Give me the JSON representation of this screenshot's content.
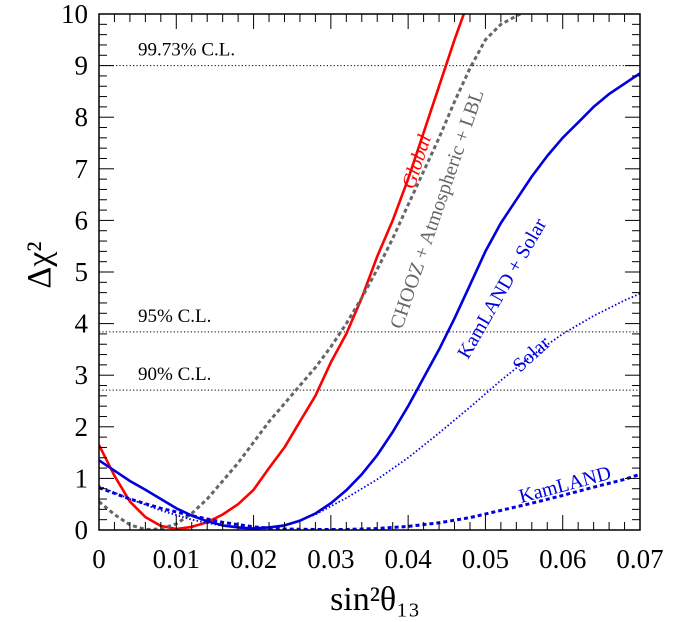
{
  "chart_data": {
    "type": "line",
    "title": "",
    "xlabel": "sin²θ₁₃",
    "ylabel": "Δχ²",
    "xlim": [
      0,
      0.07
    ],
    "ylim": [
      0,
      10
    ],
    "x_ticks": [
      "0",
      "0.01",
      "0.02",
      "0.03",
      "0.04",
      "0.05",
      "0.06",
      "0.07"
    ],
    "y_ticks": [
      "0",
      "1",
      "2",
      "3",
      "4",
      "5",
      "6",
      "7",
      "8",
      "9",
      "10"
    ],
    "grid": false,
    "reference_lines": [
      {
        "label": "99.73%  C.L.",
        "y": 9.0
      },
      {
        "label": "95% C.L.",
        "y": 3.84
      },
      {
        "label": "90% C.L.",
        "y": 2.71
      }
    ],
    "series": [
      {
        "name": "Global",
        "color": "#ff0000",
        "style": "solid",
        "points": [
          [
            0,
            1.65
          ],
          [
            0.002,
            1.05
          ],
          [
            0.004,
            0.55
          ],
          [
            0.006,
            0.25
          ],
          [
            0.008,
            0.08
          ],
          [
            0.01,
            0.02
          ],
          [
            0.012,
            0.06
          ],
          [
            0.014,
            0.15
          ],
          [
            0.016,
            0.3
          ],
          [
            0.018,
            0.5
          ],
          [
            0.02,
            0.78
          ],
          [
            0.022,
            1.2
          ],
          [
            0.024,
            1.6
          ],
          [
            0.026,
            2.1
          ],
          [
            0.028,
            2.6
          ],
          [
            0.03,
            3.25
          ],
          [
            0.032,
            3.8
          ],
          [
            0.034,
            4.5
          ],
          [
            0.036,
            5.3
          ],
          [
            0.038,
            6.0
          ],
          [
            0.04,
            6.8
          ],
          [
            0.042,
            7.7
          ],
          [
            0.044,
            8.6
          ],
          [
            0.046,
            9.5
          ],
          [
            0.0472,
            10.0
          ]
        ]
      },
      {
        "name": "CHOOZ + Atmospheric + LBL",
        "color": "#666666",
        "style": "dashed",
        "points": [
          [
            0,
            0.55
          ],
          [
            0.002,
            0.3
          ],
          [
            0.004,
            0.1
          ],
          [
            0.006,
            0.01
          ],
          [
            0.008,
            0.02
          ],
          [
            0.01,
            0.12
          ],
          [
            0.012,
            0.32
          ],
          [
            0.014,
            0.6
          ],
          [
            0.016,
            0.95
          ],
          [
            0.018,
            1.3
          ],
          [
            0.02,
            1.7
          ],
          [
            0.022,
            2.1
          ],
          [
            0.024,
            2.45
          ],
          [
            0.026,
            2.8
          ],
          [
            0.028,
            3.15
          ],
          [
            0.03,
            3.55
          ],
          [
            0.032,
            4.0
          ],
          [
            0.034,
            4.5
          ],
          [
            0.036,
            5.05
          ],
          [
            0.038,
            5.65
          ],
          [
            0.04,
            6.3
          ],
          [
            0.042,
            6.95
          ],
          [
            0.044,
            7.6
          ],
          [
            0.046,
            8.3
          ],
          [
            0.048,
            8.95
          ],
          [
            0.05,
            9.5
          ],
          [
            0.052,
            9.8
          ],
          [
            0.0545,
            10.0
          ]
        ]
      },
      {
        "name": "KamLAND + Solar",
        "color": "#0000dd",
        "style": "solid",
        "points": [
          [
            0,
            1.35
          ],
          [
            0.002,
            1.15
          ],
          [
            0.004,
            0.95
          ],
          [
            0.006,
            0.78
          ],
          [
            0.008,
            0.6
          ],
          [
            0.01,
            0.42
          ],
          [
            0.012,
            0.28
          ],
          [
            0.014,
            0.17
          ],
          [
            0.016,
            0.09
          ],
          [
            0.018,
            0.05
          ],
          [
            0.02,
            0.03
          ],
          [
            0.022,
            0.05
          ],
          [
            0.024,
            0.09
          ],
          [
            0.026,
            0.18
          ],
          [
            0.028,
            0.32
          ],
          [
            0.03,
            0.52
          ],
          [
            0.032,
            0.77
          ],
          [
            0.034,
            1.08
          ],
          [
            0.036,
            1.45
          ],
          [
            0.038,
            1.9
          ],
          [
            0.04,
            2.4
          ],
          [
            0.042,
            2.95
          ],
          [
            0.044,
            3.5
          ],
          [
            0.046,
            4.1
          ],
          [
            0.048,
            4.75
          ],
          [
            0.05,
            5.4
          ],
          [
            0.052,
            5.95
          ],
          [
            0.054,
            6.4
          ],
          [
            0.056,
            6.85
          ],
          [
            0.058,
            7.25
          ],
          [
            0.06,
            7.6
          ],
          [
            0.062,
            7.9
          ],
          [
            0.064,
            8.2
          ],
          [
            0.066,
            8.45
          ],
          [
            0.068,
            8.65
          ],
          [
            0.07,
            8.85
          ]
        ]
      },
      {
        "name": "Solar",
        "color": "#0000dd",
        "style": "dotted",
        "points": [
          [
            0,
            0.85
          ],
          [
            0.004,
            0.6
          ],
          [
            0.008,
            0.38
          ],
          [
            0.012,
            0.2
          ],
          [
            0.016,
            0.08
          ],
          [
            0.02,
            0.03
          ],
          [
            0.024,
            0.08
          ],
          [
            0.028,
            0.3
          ],
          [
            0.032,
            0.62
          ],
          [
            0.036,
            0.98
          ],
          [
            0.04,
            1.4
          ],
          [
            0.044,
            1.88
          ],
          [
            0.048,
            2.38
          ],
          [
            0.052,
            2.9
          ],
          [
            0.056,
            3.38
          ],
          [
            0.06,
            3.8
          ],
          [
            0.064,
            4.15
          ],
          [
            0.068,
            4.45
          ],
          [
            0.07,
            4.58
          ]
        ]
      },
      {
        "name": "KamLAND",
        "color": "#0000dd",
        "style": "dashed",
        "points": [
          [
            0,
            0.82
          ],
          [
            0.004,
            0.6
          ],
          [
            0.008,
            0.42
          ],
          [
            0.012,
            0.28
          ],
          [
            0.016,
            0.15
          ],
          [
            0.02,
            0.06
          ],
          [
            0.024,
            0.02
          ],
          [
            0.028,
            0.01
          ],
          [
            0.032,
            0.01
          ],
          [
            0.036,
            0.03
          ],
          [
            0.04,
            0.07
          ],
          [
            0.044,
            0.14
          ],
          [
            0.048,
            0.24
          ],
          [
            0.052,
            0.38
          ],
          [
            0.056,
            0.52
          ],
          [
            0.06,
            0.67
          ],
          [
            0.064,
            0.83
          ],
          [
            0.068,
            0.98
          ],
          [
            0.07,
            1.08
          ]
        ]
      }
    ]
  }
}
